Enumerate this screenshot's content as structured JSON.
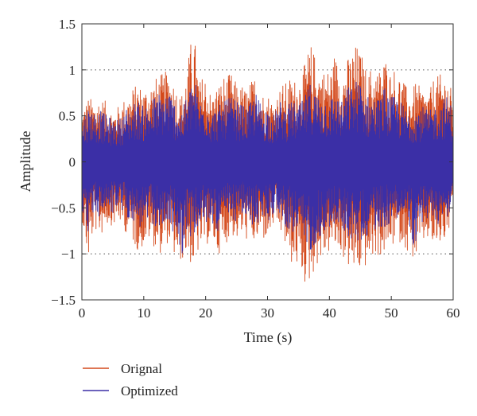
{
  "chart_data": {
    "type": "line",
    "xlabel": "Time (s)",
    "ylabel": "Amplitude",
    "xlim": [
      0,
      60
    ],
    "ylim": [
      -1.5,
      1.5
    ],
    "xticks": [
      0,
      10,
      20,
      30,
      40,
      50,
      60
    ],
    "xtick_labels": [
      "0",
      "10",
      "20",
      "30",
      "40",
      "50",
      "60"
    ],
    "yticks": [
      1.5,
      1,
      0.5,
      0,
      -0.5,
      -1,
      -1.5
    ],
    "ytick_labels": [
      "1.5",
      "1",
      "0.5",
      "0",
      "−0.5",
      "−1",
      "−1.5"
    ],
    "grid": "dotted horizontal at y = 1 and y = -1",
    "legend_position": "below plot, left",
    "series": [
      {
        "name": "Orignal",
        "color": "#d4491b",
        "x": [
          0,
          1,
          2,
          3,
          4,
          5,
          6,
          7,
          8,
          9,
          10,
          11,
          12,
          13,
          14,
          15,
          16,
          17,
          18,
          19,
          20,
          21,
          22,
          23,
          24,
          25,
          26,
          27,
          28,
          29,
          30,
          31,
          32,
          33,
          34,
          35,
          36,
          37,
          38,
          39,
          40,
          41,
          42,
          43,
          44,
          45,
          46,
          47,
          48,
          49,
          50,
          51,
          52,
          53,
          54,
          55,
          56,
          57,
          58,
          59,
          60
        ],
        "upper": [
          0.55,
          0.7,
          0.65,
          0.7,
          0.65,
          0.55,
          0.6,
          0.7,
          0.75,
          0.85,
          0.8,
          0.85,
          0.9,
          0.95,
          1.0,
          0.85,
          0.7,
          1.0,
          1.45,
          0.85,
          0.95,
          0.7,
          0.85,
          0.9,
          0.95,
          0.85,
          0.8,
          0.8,
          0.95,
          0.75,
          0.75,
          0.65,
          0.8,
          0.85,
          0.9,
          0.9,
          1.05,
          1.25,
          1.05,
          1.0,
          1.0,
          1.15,
          0.95,
          1.1,
          1.25,
          1.2,
          0.95,
          1.0,
          1.0,
          1.15,
          0.95,
          1.0,
          0.85,
          0.75,
          0.85,
          0.8,
          0.75,
          0.9,
          0.95,
          0.95,
          0.7
        ],
        "lower": [
          -0.6,
          -1.1,
          -0.7,
          -0.8,
          -0.65,
          -0.7,
          -0.65,
          -0.75,
          -0.8,
          -0.95,
          -0.9,
          -0.85,
          -0.95,
          -1.0,
          -0.85,
          -1.05,
          -1.05,
          -1.0,
          -1.15,
          -0.95,
          -0.9,
          -0.85,
          -1.0,
          -0.95,
          -0.75,
          -0.85,
          -0.8,
          -0.85,
          -0.9,
          -0.8,
          -0.85,
          -0.7,
          -0.75,
          -0.95,
          -1.1,
          -1.15,
          -1.3,
          -1.25,
          -1.1,
          -1.05,
          -0.95,
          -0.95,
          -1.0,
          -1.1,
          -1.2,
          -1.2,
          -1.1,
          -1.05,
          -1.0,
          -1.0,
          -0.9,
          -0.85,
          -0.9,
          -1.0,
          -1.05,
          -0.9,
          -0.85,
          -0.95,
          -0.9,
          -0.85,
          -0.55
        ]
      },
      {
        "name": "Optimized",
        "color": "#3b2fa6",
        "x": [
          0,
          1,
          2,
          3,
          4,
          5,
          6,
          7,
          8,
          9,
          10,
          11,
          12,
          13,
          14,
          15,
          16,
          17,
          18,
          19,
          20,
          21,
          22,
          23,
          24,
          25,
          26,
          27,
          28,
          29,
          30,
          31,
          32,
          33,
          34,
          35,
          36,
          37,
          38,
          39,
          40,
          41,
          42,
          43,
          44,
          45,
          46,
          47,
          48,
          49,
          50,
          51,
          52,
          53,
          54,
          55,
          56,
          57,
          58,
          59,
          60
        ],
        "upper": [
          0.45,
          0.6,
          0.55,
          0.55,
          0.5,
          0.45,
          0.45,
          0.55,
          0.6,
          0.65,
          0.6,
          0.65,
          0.7,
          0.75,
          0.8,
          0.65,
          0.55,
          0.7,
          0.95,
          0.65,
          0.7,
          0.55,
          0.6,
          0.65,
          0.7,
          0.65,
          0.6,
          0.6,
          0.75,
          0.6,
          0.6,
          0.5,
          0.65,
          0.6,
          0.65,
          0.6,
          0.7,
          0.85,
          0.75,
          0.7,
          0.7,
          0.75,
          0.65,
          0.8,
          0.85,
          0.9,
          0.7,
          0.7,
          0.7,
          0.8,
          0.7,
          0.7,
          0.6,
          0.55,
          0.6,
          0.6,
          0.55,
          0.6,
          0.65,
          0.7,
          0.55
        ],
        "lower": [
          -0.5,
          -0.75,
          -0.55,
          -0.6,
          -0.5,
          -0.55,
          -0.5,
          -0.6,
          -0.6,
          -0.7,
          -0.7,
          -0.65,
          -0.7,
          -0.75,
          -0.65,
          -0.8,
          -1.05,
          -0.75,
          -0.85,
          -0.7,
          -0.7,
          -0.65,
          -0.75,
          -0.7,
          -0.6,
          -0.65,
          -0.6,
          -0.65,
          -0.7,
          -0.6,
          -0.65,
          -0.55,
          -0.55,
          -0.7,
          -0.75,
          -0.8,
          -0.9,
          -0.95,
          -0.85,
          -0.75,
          -0.7,
          -0.7,
          -0.7,
          -0.8,
          -0.85,
          -0.85,
          -0.8,
          -0.75,
          -0.7,
          -0.7,
          -0.65,
          -0.6,
          -0.65,
          -0.7,
          -1.05,
          -0.65,
          -0.6,
          -0.7,
          -0.65,
          -0.6,
          -0.45
        ]
      }
    ]
  }
}
